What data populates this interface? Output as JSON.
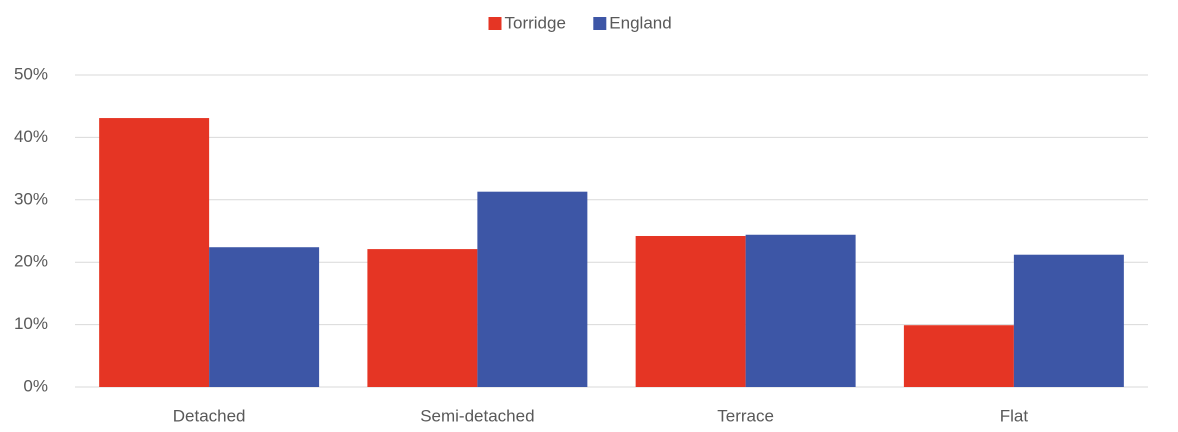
{
  "chart_data": {
    "type": "bar",
    "categories": [
      "Detached",
      "Semi-detached",
      "Terrace",
      "Flat"
    ],
    "series": [
      {
        "name": "Torridge",
        "color": "#e53524",
        "values": [
          43.1,
          22.1,
          24.2,
          9.9
        ]
      },
      {
        "name": "England",
        "color": "#3d56a6",
        "values": [
          22.4,
          31.3,
          24.4,
          21.2
        ]
      }
    ],
    "ylim": [
      0,
      50
    ],
    "yticks": [
      {
        "value": 0,
        "label": "0%"
      },
      {
        "value": 10,
        "label": "10%"
      },
      {
        "value": 20,
        "label": "20%"
      },
      {
        "value": 30,
        "label": "30%"
      },
      {
        "value": 40,
        "label": "40%"
      },
      {
        "value": 50,
        "label": "50%"
      }
    ],
    "grid": true,
    "legend": "top"
  }
}
